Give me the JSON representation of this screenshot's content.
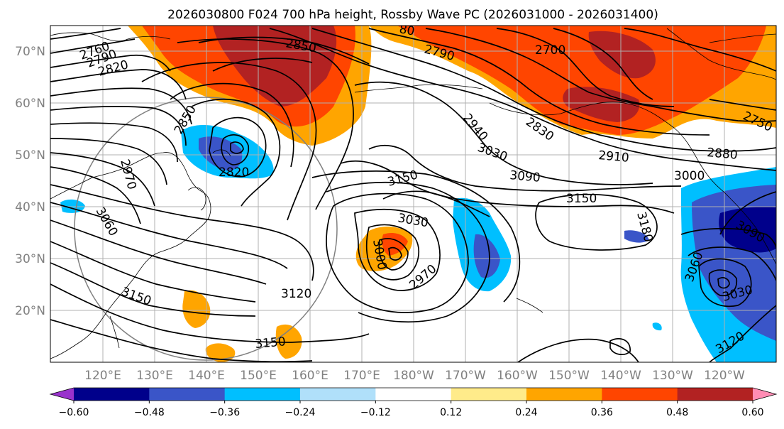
{
  "title": "2026030800 F024 700 hPa height, Rossby Wave PC (2026031000 - 2026031400)",
  "latitude_labels": [
    "70°N",
    "60°N",
    "50°N",
    "40°N",
    "30°N",
    "20°N"
  ],
  "longitude_labels": [
    "120°E",
    "130°E",
    "140°E",
    "150°E",
    "160°E",
    "170°E",
    "180°W",
    "170°W",
    "160°W",
    "150°W",
    "140°W",
    "130°W",
    "120°W"
  ],
  "contour_labels": {
    "c2760": "2760",
    "c2790a": "2790",
    "c2820a": "2820",
    "c2850": "2850",
    "c2790b": "2790",
    "c2700": "2700",
    "c2750": "2750",
    "c2940": "2940",
    "c2830": "2830",
    "c3030a": "3030",
    "c2910": "2910",
    "c2880": "2880",
    "c3090a": "3090",
    "c3000a": "3000",
    "c3150a": "3150",
    "c3150b": "3150",
    "c3180": "3180",
    "c2850b": "2850",
    "c2820b": "2820",
    "c2970a": "2970",
    "c3060a": "3060",
    "c3030b": "3030",
    "c3000b": "3000",
    "c2970b": "2970",
    "c3120a": "3120",
    "c3150c": "3150",
    "c3150d": "3150",
    "c3060b": "3060",
    "c3090b": "3090",
    "c3030c": "3030",
    "c3120b": "3120",
    "c80": "80"
  },
  "colorbar": {
    "colors": [
      "#9932cc",
      "#00008b",
      "#3a55c8",
      "#00bfff",
      "#b0e0fa",
      "#ffffff",
      "#ffeb8a",
      "#ffa500",
      "#ff4500",
      "#b22222",
      "#ff8cb4"
    ],
    "tick_labels": [
      "−0.60",
      "−0.48",
      "−0.36",
      "−0.24",
      "−0.12",
      "0.12",
      "0.24",
      "0.36",
      "0.48",
      "0.60"
    ]
  },
  "colors": {
    "positive_strong": "#b22222",
    "positive_mid": "#ff4500",
    "positive_weak": "#ffa500",
    "negative_weak": "#00bfff",
    "negative_mid": "#3a55c8",
    "negative_strong": "#00008b",
    "grid": "#b0b0b0",
    "tick_text": "#808080"
  }
}
